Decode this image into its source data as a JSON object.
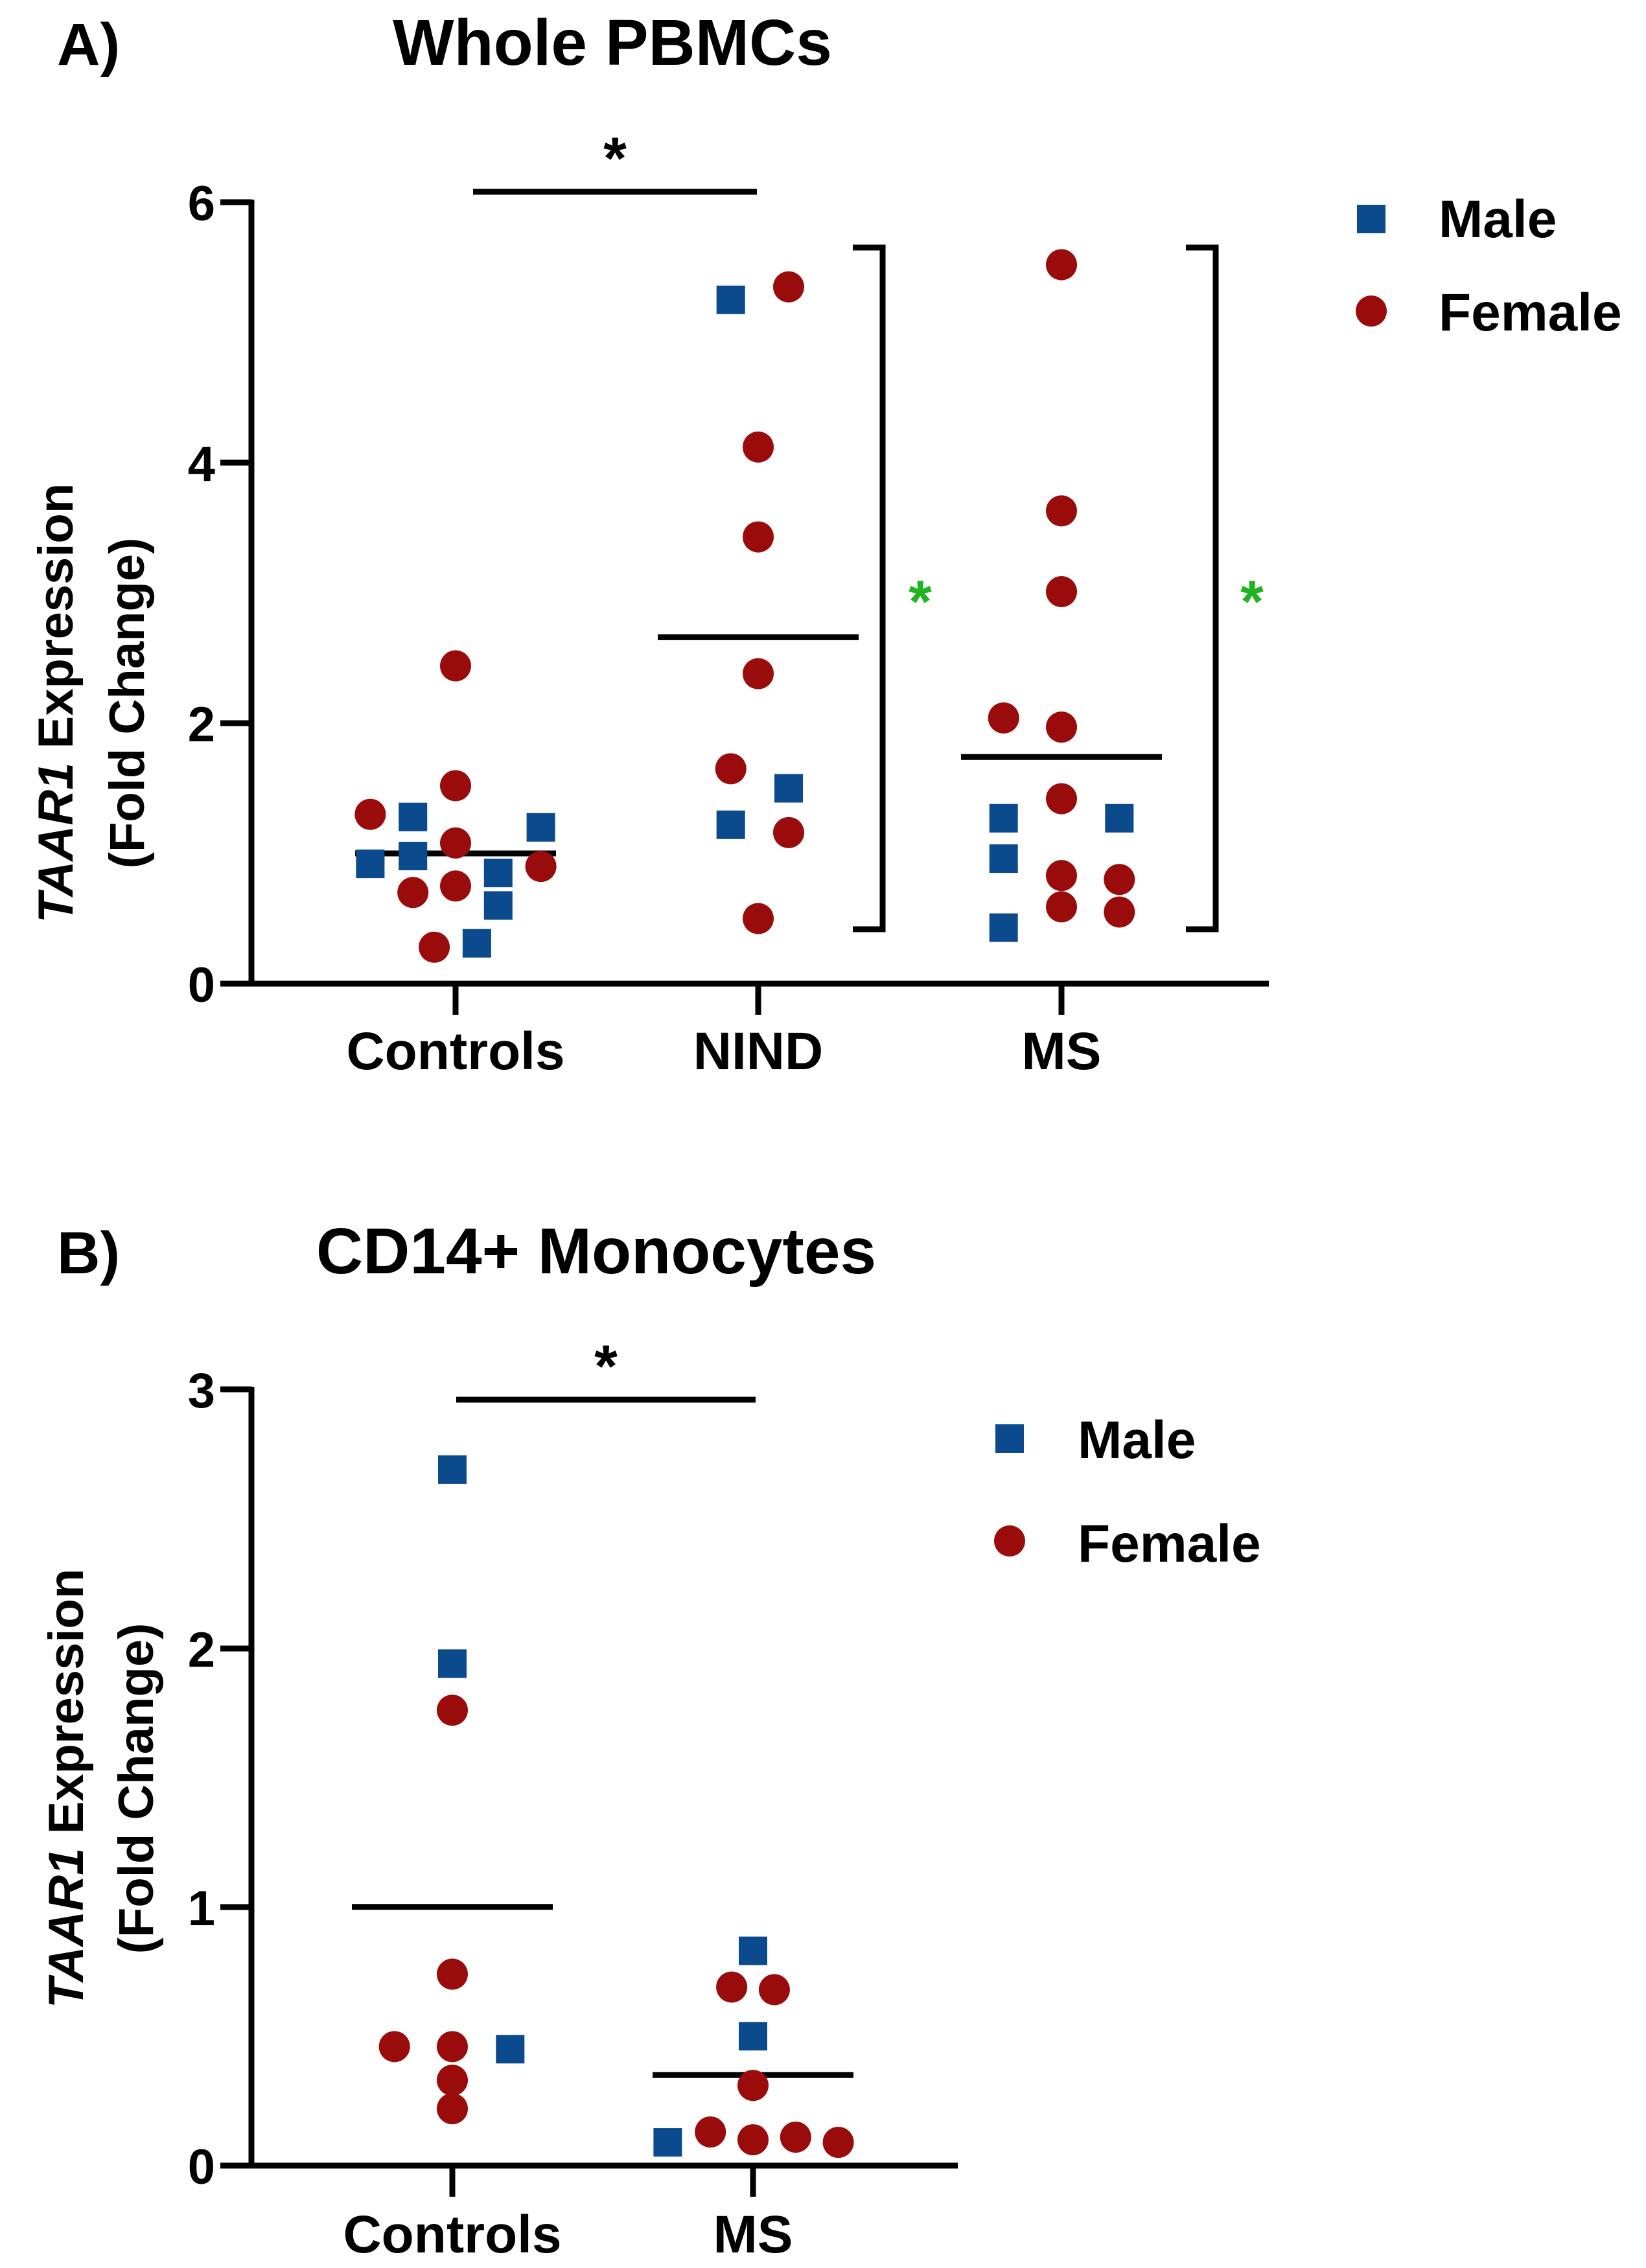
{
  "colors": {
    "male": "#0B4A8C",
    "female": "#9A0C0C",
    "axis": "#000000",
    "sig_green": "#22B322"
  },
  "chart_data": [
    {
      "type": "scatter",
      "panel_label": "A)",
      "title": "Whole PBMCs",
      "ylabel_italic": "TAAR1",
      "ylabel_rest": " Expression",
      "ylabel_line2": "(Fold Change)",
      "ylim": [
        0,
        6
      ],
      "yticks": [
        "0",
        "2",
        "4",
        "6"
      ],
      "categories": [
        "Controls",
        "NIND",
        "MS"
      ],
      "legend": {
        "position": "top-right",
        "items": [
          "Male",
          "Female"
        ]
      },
      "series": [
        {
          "name": "Male",
          "points": [
            {
              "group": "Controls",
              "offset": -0.28,
              "y": 0.92
            },
            {
              "group": "Controls",
              "offset": -0.14,
              "y": 1.28
            },
            {
              "group": "Controls",
              "offset": -0.14,
              "y": 0.98
            },
            {
              "group": "Controls",
              "offset": 0.14,
              "y": 0.85
            },
            {
              "group": "Controls",
              "offset": 0.14,
              "y": 0.6
            },
            {
              "group": "Controls",
              "offset": 0.07,
              "y": 0.31
            },
            {
              "group": "Controls",
              "offset": 0.28,
              "y": 1.2
            },
            {
              "group": "NIND",
              "offset": -0.09,
              "y": 5.25
            },
            {
              "group": "NIND",
              "offset": -0.09,
              "y": 1.22
            },
            {
              "group": "NIND",
              "offset": 0.1,
              "y": 1.5
            },
            {
              "group": "MS",
              "offset": -0.19,
              "y": 1.27
            },
            {
              "group": "MS",
              "offset": -0.19,
              "y": 0.96
            },
            {
              "group": "MS",
              "offset": -0.19,
              "y": 0.43
            },
            {
              "group": "MS",
              "offset": 0.19,
              "y": 1.27
            }
          ]
        },
        {
          "name": "Female",
          "points": [
            {
              "group": "Controls",
              "offset": -0.28,
              "y": 1.3
            },
            {
              "group": "Controls",
              "offset": 0.0,
              "y": 2.44
            },
            {
              "group": "Controls",
              "offset": 0.0,
              "y": 1.52
            },
            {
              "group": "Controls",
              "offset": 0.0,
              "y": 1.08
            },
            {
              "group": "Controls",
              "offset": 0.0,
              "y": 0.75
            },
            {
              "group": "Controls",
              "offset": -0.14,
              "y": 0.7
            },
            {
              "group": "Controls",
              "offset": -0.07,
              "y": 0.28
            },
            {
              "group": "Controls",
              "offset": 0.28,
              "y": 0.9
            },
            {
              "group": "NIND",
              "offset": 0.1,
              "y": 5.35
            },
            {
              "group": "NIND",
              "offset": 0.0,
              "y": 4.12
            },
            {
              "group": "NIND",
              "offset": 0.0,
              "y": 3.43
            },
            {
              "group": "NIND",
              "offset": 0.0,
              "y": 2.38
            },
            {
              "group": "NIND",
              "offset": -0.09,
              "y": 1.65
            },
            {
              "group": "NIND",
              "offset": 0.1,
              "y": 1.16
            },
            {
              "group": "NIND",
              "offset": 0.0,
              "y": 0.5
            },
            {
              "group": "MS",
              "offset": 0.0,
              "y": 5.52
            },
            {
              "group": "MS",
              "offset": 0.0,
              "y": 3.63
            },
            {
              "group": "MS",
              "offset": 0.0,
              "y": 3.01
            },
            {
              "group": "MS",
              "offset": -0.19,
              "y": 2.04
            },
            {
              "group": "MS",
              "offset": 0.0,
              "y": 1.97
            },
            {
              "group": "MS",
              "offset": 0.0,
              "y": 1.42
            },
            {
              "group": "MS",
              "offset": 0.0,
              "y": 0.83
            },
            {
              "group": "MS",
              "offset": 0.19,
              "y": 0.8
            },
            {
              "group": "MS",
              "offset": 0.0,
              "y": 0.59
            },
            {
              "group": "MS",
              "offset": 0.19,
              "y": 0.55
            }
          ]
        }
      ],
      "means": [
        {
          "group": "Controls",
          "y": 1.0
        },
        {
          "group": "NIND",
          "y": 2.66
        },
        {
          "group": "MS",
          "y": 1.74
        }
      ],
      "significance": [
        {
          "type": "bar",
          "from": "Controls",
          "to": "NIND",
          "y": 6.08,
          "label": "*",
          "color": "black"
        },
        {
          "type": "bracket",
          "after": "NIND",
          "from_y": 0.42,
          "to_y": 5.66,
          "label": "*",
          "color": "green"
        },
        {
          "type": "bracket",
          "after": "MS",
          "from_y": 0.42,
          "to_y": 5.66,
          "label": "*",
          "color": "green"
        }
      ]
    },
    {
      "type": "scatter",
      "panel_label": "B)",
      "title": "CD14+ Monocytes",
      "ylabel_italic": "TAAR1",
      "ylabel_rest": " Expression",
      "ylabel_line2": "(Fold Change)",
      "ylim": [
        0,
        3
      ],
      "yticks": [
        "0",
        "1",
        "2",
        "3"
      ],
      "categories": [
        "Controls",
        "MS"
      ],
      "legend": {
        "position": "top-right",
        "items": [
          "Male",
          "Female"
        ]
      },
      "series": [
        {
          "name": "Male",
          "points": [
            {
              "group": "Controls",
              "offset": 0.0,
              "y": 2.69
            },
            {
              "group": "Controls",
              "offset": 0.0,
              "y": 1.94
            },
            {
              "group": "Controls",
              "offset": 0.19,
              "y": 0.45
            },
            {
              "group": "MS",
              "offset": 0.0,
              "y": 0.83
            },
            {
              "group": "MS",
              "offset": 0.0,
              "y": 0.5
            },
            {
              "group": "MS",
              "offset": -0.28,
              "y": 0.09
            }
          ]
        },
        {
          "name": "Female",
          "points": [
            {
              "group": "Controls",
              "offset": 0.0,
              "y": 1.76
            },
            {
              "group": "Controls",
              "offset": 0.0,
              "y": 0.74
            },
            {
              "group": "Controls",
              "offset": -0.19,
              "y": 0.46
            },
            {
              "group": "Controls",
              "offset": 0.0,
              "y": 0.46
            },
            {
              "group": "Controls",
              "offset": 0.0,
              "y": 0.33
            },
            {
              "group": "Controls",
              "offset": 0.0,
              "y": 0.22
            },
            {
              "group": "MS",
              "offset": -0.07,
              "y": 0.69
            },
            {
              "group": "MS",
              "offset": 0.07,
              "y": 0.68
            },
            {
              "group": "MS",
              "offset": 0.0,
              "y": 0.31
            },
            {
              "group": "MS",
              "offset": -0.14,
              "y": 0.13
            },
            {
              "group": "MS",
              "offset": 0.0,
              "y": 0.1
            },
            {
              "group": "MS",
              "offset": 0.14,
              "y": 0.11
            },
            {
              "group": "MS",
              "offset": 0.28,
              "y": 0.09
            }
          ]
        }
      ],
      "means": [
        {
          "group": "Controls",
          "y": 1.0
        },
        {
          "group": "MS",
          "y": 0.35
        }
      ],
      "significance": [
        {
          "type": "bar",
          "from": "Controls",
          "to": "MS",
          "y": 2.96,
          "label": "*",
          "color": "black"
        }
      ]
    }
  ]
}
